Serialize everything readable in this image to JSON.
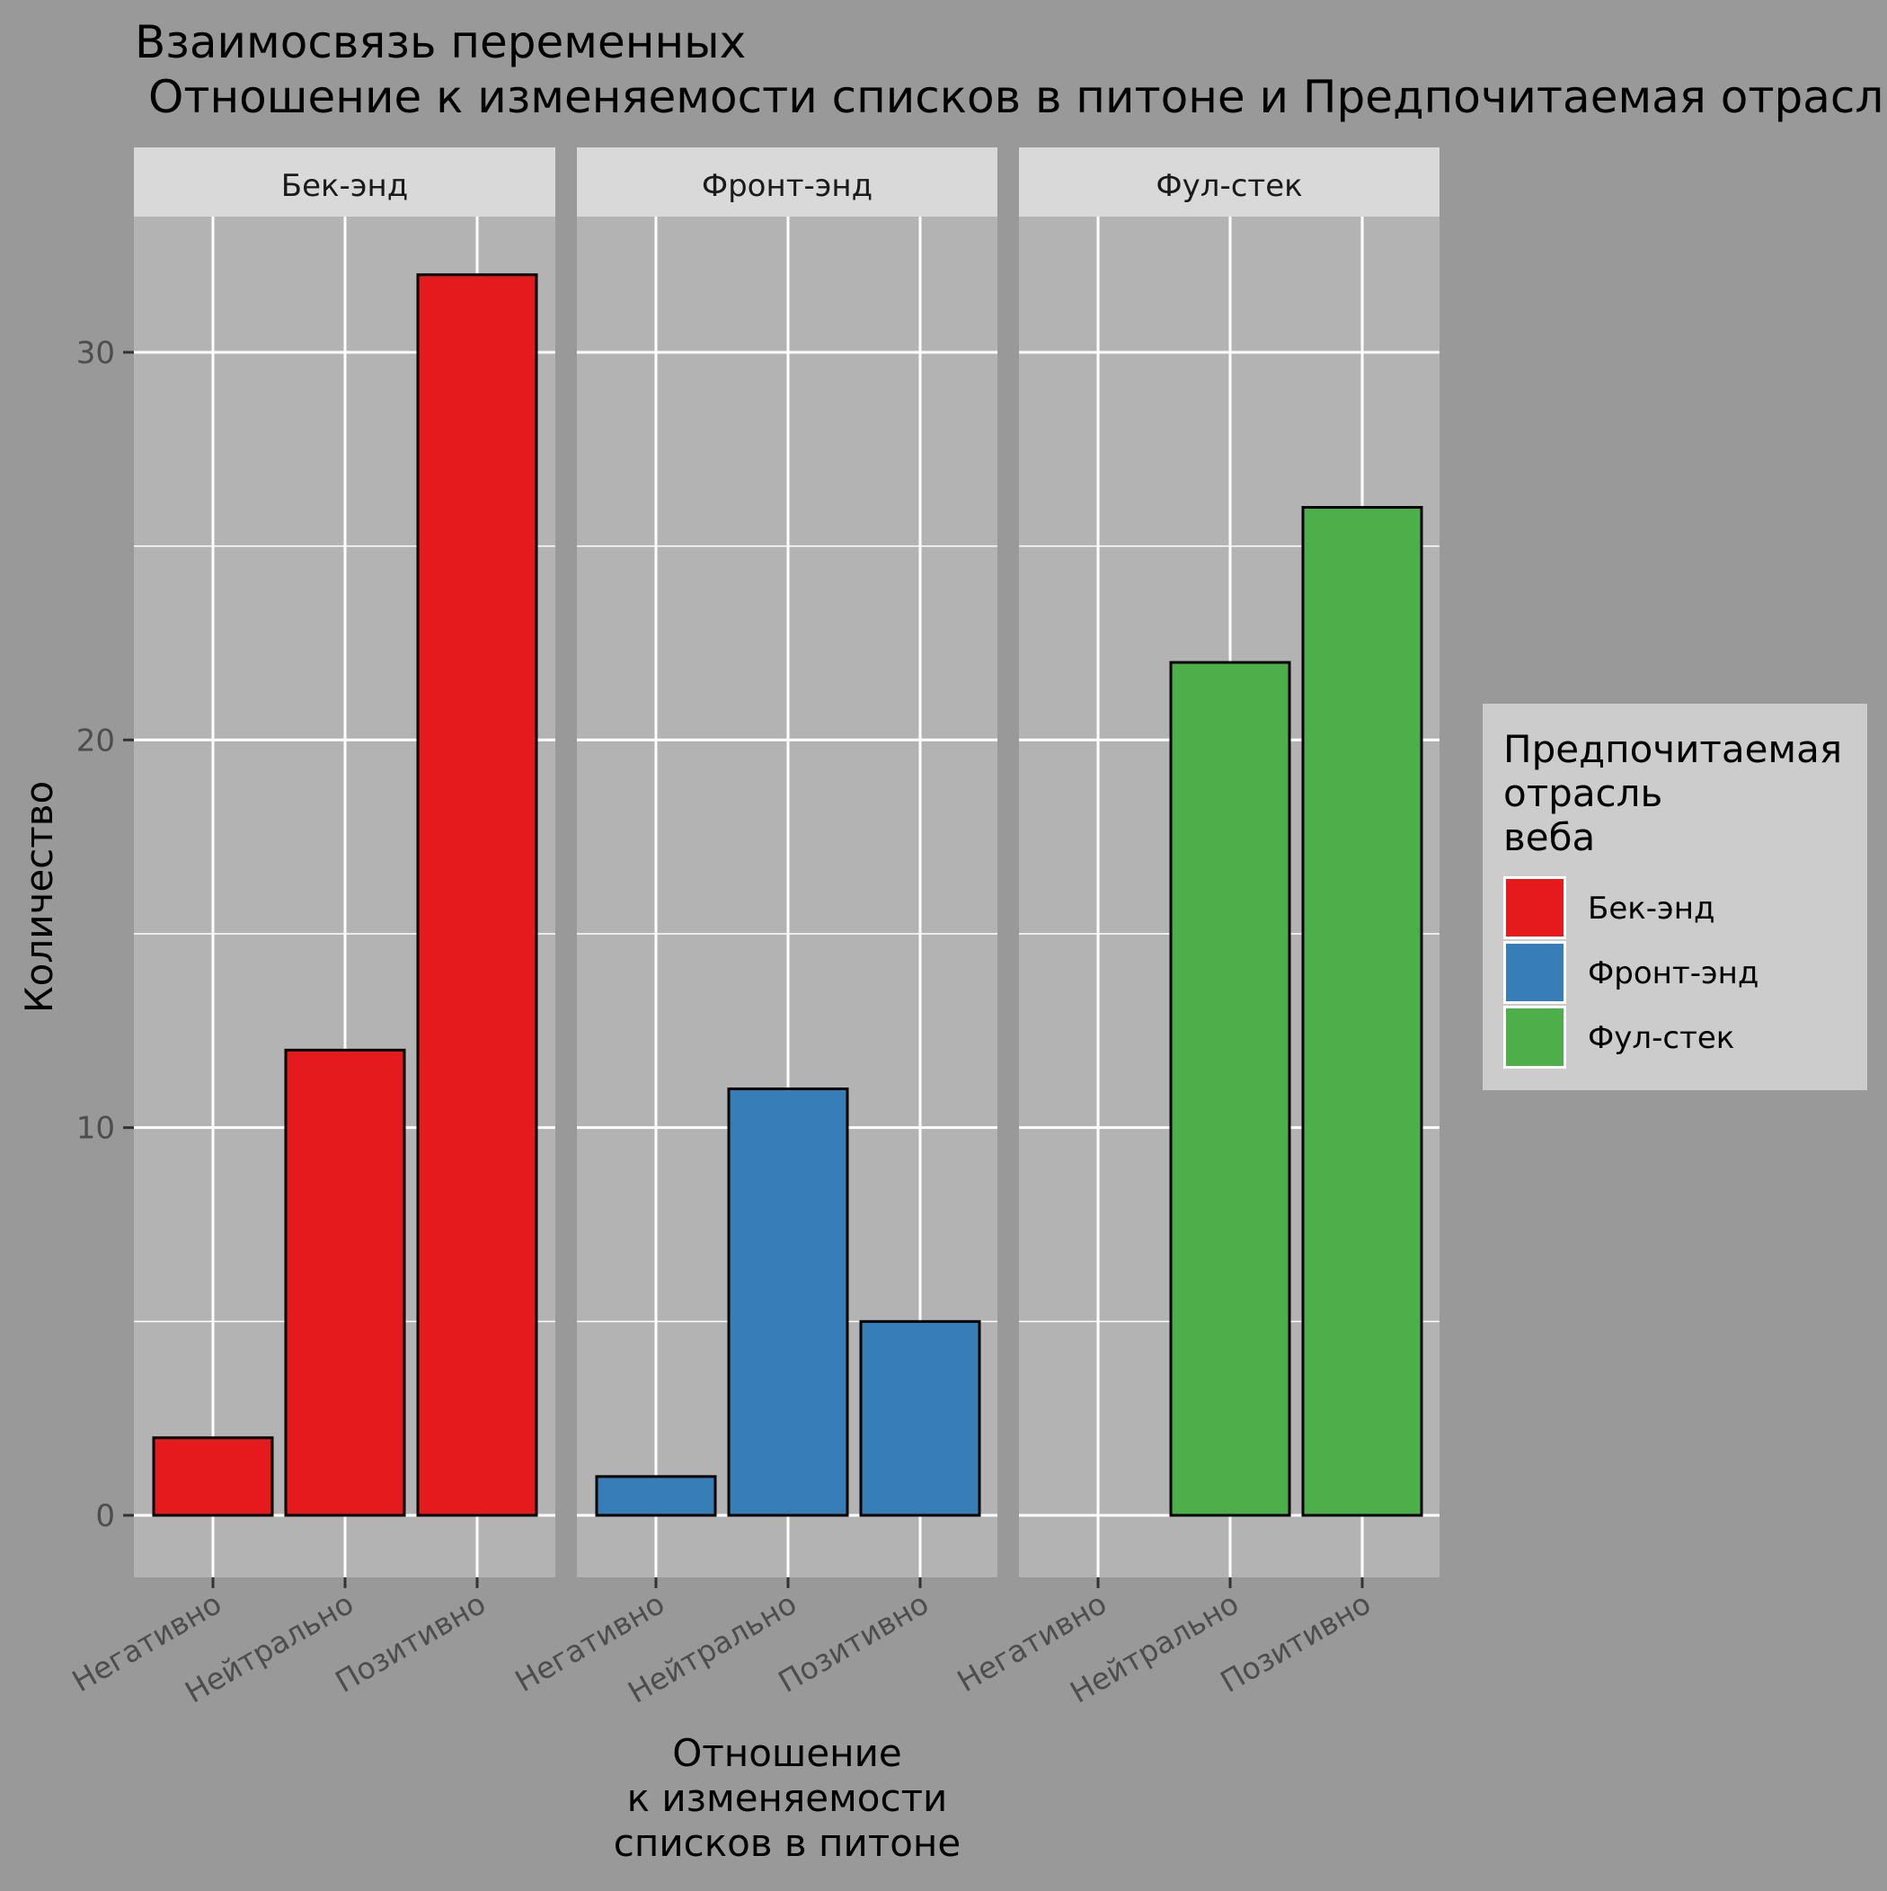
{
  "chart_data": {
    "type": "bar",
    "title_line1": "Взаимосвязь переменных",
    "title_line2": "Отношение к изменяемости списков в питоне и Предпочитаемая отрасль веба",
    "xlabel_lines": [
      "Отношение",
      "к изменяемости",
      "списков в питоне"
    ],
    "ylabel": "Количество",
    "ylim": [
      -1.6,
      33.5
    ],
    "yticks": [
      0,
      10,
      20,
      30
    ],
    "categories": [
      "Негативно",
      "Нейтрально",
      "Позитивно"
    ],
    "facets": [
      {
        "name": "Бек-энд",
        "color": "#E41A1C",
        "values": [
          2,
          12,
          32
        ]
      },
      {
        "name": "Фронт-энд",
        "color": "#377EB8",
        "values": [
          1,
          11,
          5
        ]
      },
      {
        "name": "Фул-стек",
        "color": "#4DAF4A",
        "values": [
          0,
          22,
          26
        ]
      }
    ],
    "legend": {
      "title_lines": [
        "Предпочитаемая",
        "отрасль",
        "веба"
      ],
      "placement": "right",
      "entries": [
        {
          "label": "Бек-энд",
          "color": "#E41A1C"
        },
        {
          "label": "Фронт-энд",
          "color": "#377EB8"
        },
        {
          "label": "Фул-стек",
          "color": "#4DAF4A"
        }
      ]
    },
    "grid": true
  }
}
